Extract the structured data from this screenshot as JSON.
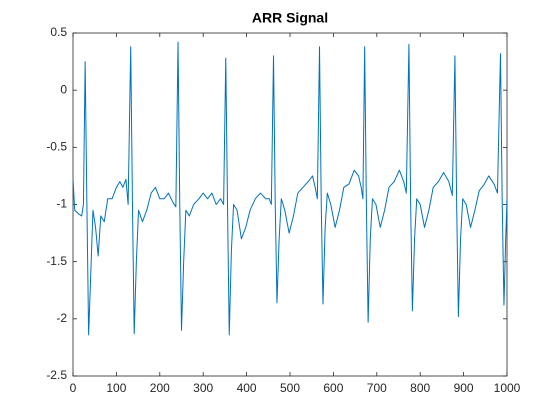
{
  "chart_data": {
    "type": "line",
    "title": "ARR Signal",
    "color": "#0072bd",
    "x": [
      0,
      4,
      12,
      20,
      24,
      28,
      32,
      36,
      41,
      46,
      52,
      58,
      64,
      72,
      80,
      90,
      100,
      108,
      115,
      122,
      127,
      133,
      137,
      141,
      146,
      151,
      160,
      170,
      180,
      190,
      200,
      210,
      220,
      230,
      237,
      242,
      246,
      250,
      255,
      260,
      268,
      278,
      290,
      300,
      310,
      320,
      330,
      340,
      347,
      352,
      356,
      360,
      365,
      370,
      378,
      388,
      398,
      408,
      420,
      432,
      444,
      452,
      457,
      462,
      466,
      470,
      475,
      480,
      488,
      498,
      508,
      518,
      530,
      542,
      552,
      558,
      563,
      568,
      572,
      576,
      581,
      586,
      594,
      604,
      614,
      624,
      636,
      648,
      658,
      664,
      668,
      672,
      676,
      680,
      685,
      690,
      698,
      708,
      718,
      728,
      740,
      752,
      762,
      768,
      774,
      778,
      782,
      787,
      792,
      800,
      810,
      820,
      830,
      842,
      854,
      866,
      874,
      880,
      884,
      888,
      893,
      898,
      906,
      916,
      926,
      936,
      948,
      958,
      970,
      978,
      985,
      989,
      993,
      997,
      1000
    ],
    "values": [
      -0.78,
      -1.05,
      -1.08,
      -1.1,
      -1.0,
      0.25,
      -1.0,
      -2.14,
      -1.6,
      -1.05,
      -1.2,
      -1.45,
      -1.1,
      -1.15,
      -0.95,
      -0.95,
      -0.85,
      -0.8,
      -0.85,
      -0.78,
      -1.0,
      0.38,
      -1.0,
      -2.13,
      -1.5,
      -1.05,
      -1.15,
      -1.05,
      -0.9,
      -0.85,
      -0.95,
      -0.95,
      -0.9,
      -0.98,
      -1.02,
      0.42,
      -1.0,
      -2.1,
      -1.5,
      -1.05,
      -1.1,
      -1.0,
      -0.95,
      -0.9,
      -0.95,
      -0.9,
      -1.0,
      -0.95,
      -1.0,
      0.28,
      -1.0,
      -2.14,
      -1.4,
      -1.0,
      -1.05,
      -1.3,
      -1.2,
      -1.05,
      -0.95,
      -0.9,
      -0.95,
      -0.95,
      -1.0,
      0.3,
      -1.0,
      -1.86,
      -1.3,
      -0.95,
      -1.05,
      -1.25,
      -1.1,
      -0.9,
      -0.85,
      -0.8,
      -0.75,
      -0.85,
      -0.95,
      0.38,
      -1.0,
      -1.87,
      -1.2,
      -0.9,
      -1.0,
      -1.2,
      -1.05,
      -0.85,
      -0.82,
      -0.7,
      -0.75,
      -0.85,
      -0.95,
      0.38,
      -1.0,
      -2.03,
      -1.3,
      -0.95,
      -1.0,
      -1.2,
      -1.05,
      -0.85,
      -0.8,
      -0.7,
      -0.8,
      -0.9,
      0.4,
      -1.0,
      -1.93,
      -1.3,
      -0.95,
      -1.0,
      -1.2,
      -1.05,
      -0.85,
      -0.8,
      -0.72,
      -0.8,
      -0.92,
      0.3,
      -1.0,
      -1.98,
      -1.3,
      -0.95,
      -1.0,
      -1.2,
      -1.05,
      -0.88,
      -0.82,
      -0.75,
      -0.82,
      -0.9,
      0.32,
      -1.0,
      -1.88,
      -1.3,
      -0.95
    ],
    "xlim": [
      0,
      1000
    ],
    "xticks": [
      0,
      100,
      200,
      300,
      400,
      500,
      600,
      700,
      800,
      900,
      1000
    ],
    "ylim": [
      -2.5,
      0.5
    ],
    "yticks": [
      0.5,
      0,
      -0.5,
      -1,
      -1.5,
      -2,
      -2.5
    ]
  }
}
